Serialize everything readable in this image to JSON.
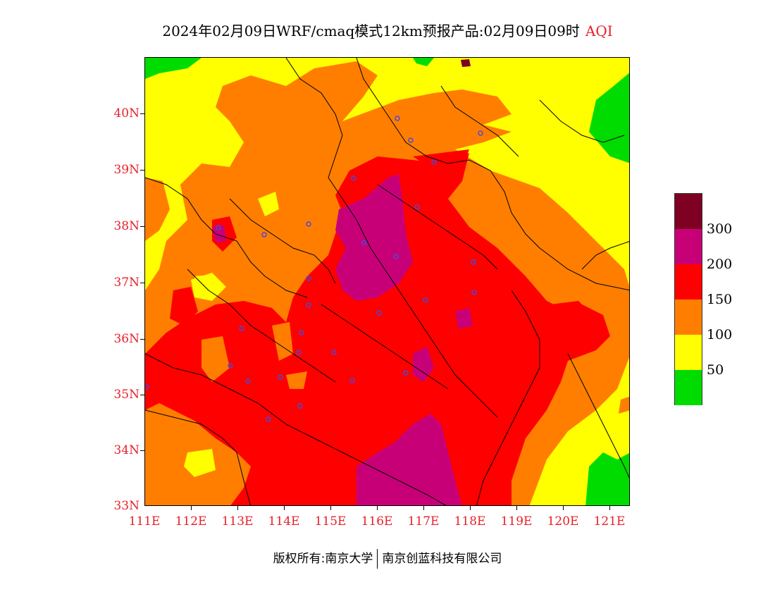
{
  "title": "2024年02月09日WRF/cmaq模式12km预报产品:02月09日09时",
  "title_variable": "AQI",
  "map": {
    "lat_labels": [
      "40N",
      "39N",
      "38N",
      "37N",
      "36N",
      "35N",
      "34N",
      "33N"
    ],
    "lon_labels": [
      "111E",
      "112E",
      "113E",
      "114E",
      "115E",
      "116E",
      "117E",
      "118E",
      "119E",
      "120E",
      "121E"
    ]
  },
  "legend": {
    "colors": [
      "#00dc00",
      "#ffff00",
      "#ff7e00",
      "#ff0000",
      "#c80078",
      "#7e0023"
    ],
    "labels": [
      "300",
      "200",
      "150",
      "100",
      "50"
    ]
  },
  "footer": {
    "left": "版权所有:南京大学",
    "right": "南京创蓝科技有限公司"
  },
  "colors": {
    "label_red": "#e8202a",
    "good": "#00dc00",
    "moderate": "#ffff00",
    "usg": "#ff7e00",
    "unhealthy": "#ff0000",
    "very_unhealthy": "#c80078",
    "hazardous": "#7e0023",
    "station_marker": "#4a4adc"
  }
}
